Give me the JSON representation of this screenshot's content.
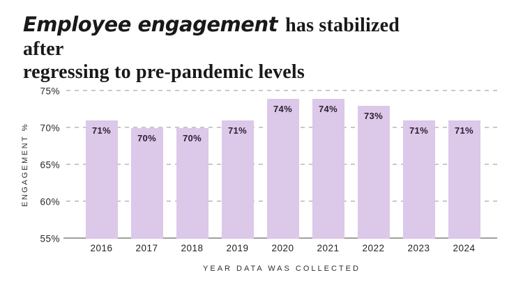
{
  "title": {
    "script": "Employee engagement",
    "line1_rest": " has stabilized after",
    "line2": "regressing to pre-pandemic levels"
  },
  "chart_data": {
    "type": "bar",
    "title": "Employee engagement has stabilized after regressing to pre-pandemic levels",
    "categories": [
      "2016",
      "2017",
      "2018",
      "2019",
      "2020",
      "2021",
      "2022",
      "2023",
      "2024"
    ],
    "values": [
      71,
      70,
      70,
      71,
      74,
      74,
      73,
      71,
      71
    ],
    "value_labels": [
      "71%",
      "70%",
      "70%",
      "71%",
      "74%",
      "74%",
      "73%",
      "71%",
      "71%"
    ],
    "xlabel": "YEAR DATA WAS COLLECTED",
    "ylabel": "ENGAGEMENT %",
    "ylim": [
      55,
      75
    ],
    "ytick_step": 5,
    "yticks": [
      "55%",
      "60%",
      "65%",
      "70%",
      "75%"
    ],
    "grid": "horizontal dashed, on; top gridline at 75%",
    "legend": "none",
    "bar_color": "#dcc8e9",
    "bar_label_color": "#2b2134",
    "gridline_color": "#c9c9c9",
    "baseline_color": "#a0a0a0",
    "text_color": "#262626",
    "background_color": "#ffffff"
  }
}
